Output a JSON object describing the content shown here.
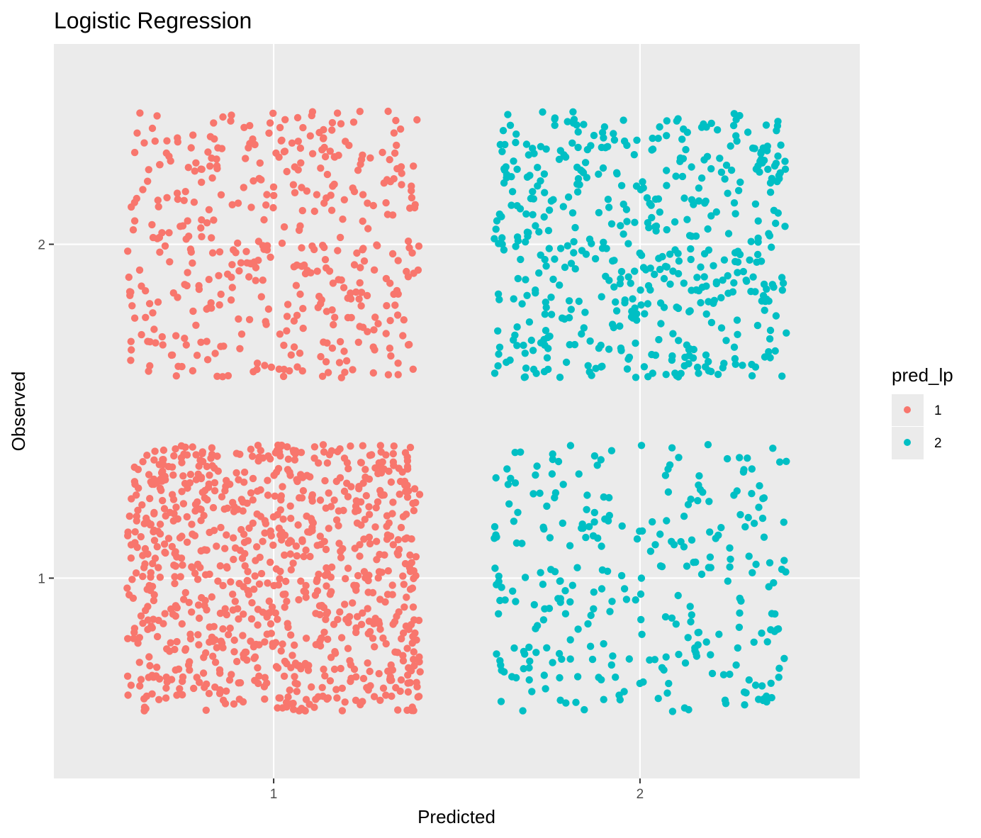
{
  "chart_data": {
    "type": "scatter",
    "jitter": true,
    "title": "Logistic Regression",
    "xlabel": "Predicted",
    "ylabel": "Observed",
    "x_ticks": [
      "1",
      "2"
    ],
    "y_ticks": [
      "1",
      "2"
    ],
    "xlim": [
      0.4,
      2.6
    ],
    "ylim": [
      0.4,
      2.6
    ],
    "jitter_width": 0.4,
    "jitter_height": 0.4,
    "grid": true,
    "legend": {
      "title": "pred_lp",
      "position": "right",
      "entries": [
        {
          "label": "1",
          "color": "#F8766D"
        },
        {
          "label": "2",
          "color": "#00BFC4"
        }
      ]
    },
    "cells": [
      {
        "predicted": 1,
        "observed": 2,
        "count": 430,
        "color": "#F8766D"
      },
      {
        "predicted": 2,
        "observed": 2,
        "count": 520,
        "color": "#00BFC4"
      },
      {
        "predicted": 1,
        "observed": 1,
        "count": 900,
        "color": "#F8766D"
      },
      {
        "predicted": 2,
        "observed": 1,
        "count": 300,
        "color": "#00BFC4"
      }
    ]
  },
  "colors": {
    "panel_background": "#EBEBEB",
    "grid_major": "#FFFFFF",
    "tick_label": "#4D4D4D"
  }
}
